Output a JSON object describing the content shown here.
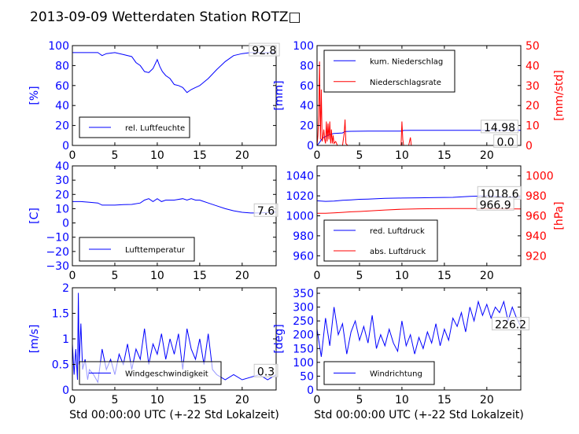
{
  "title": "2013-09-09 Wetterdaten Station ROTZ□",
  "chart_data": [
    {
      "id": "humidity",
      "type": "line",
      "xlim": [
        0,
        24
      ],
      "xticks": [
        0,
        5,
        10,
        15,
        20
      ],
      "left_axis": {
        "label": "[%]",
        "ylim": [
          0,
          100
        ],
        "ticks": [
          0,
          20,
          40,
          60,
          80,
          100
        ],
        "color": "#0000ff"
      },
      "series": [
        {
          "name": "rel. Luftfeuchte",
          "axis": "left",
          "color": "#0000ff",
          "x": [
            0,
            1,
            2,
            3,
            3.5,
            4,
            5,
            6,
            7,
            7.5,
            8,
            8.5,
            9,
            9.5,
            10,
            10.3,
            10.6,
            11,
            11.5,
            12,
            12.5,
            13,
            13.5,
            14,
            14.5,
            15,
            16,
            17,
            18,
            19,
            20,
            21,
            22,
            23,
            24
          ],
          "y": [
            93,
            93,
            93,
            93,
            90,
            92,
            93,
            91,
            89,
            83,
            80,
            74,
            73,
            77,
            86,
            79,
            74,
            70,
            67,
            61,
            60,
            58,
            53,
            56,
            58,
            60,
            67,
            76,
            84,
            90,
            92,
            93,
            93,
            93,
            93
          ]
        }
      ],
      "annotations": [
        {
          "text": "92.8",
          "x": 22.6,
          "y": 96,
          "axis": "left"
        }
      ],
      "legend": {
        "position": "lower-left"
      }
    },
    {
      "id": "rain",
      "type": "line",
      "xlim": [
        0,
        24
      ],
      "xticks": [
        0,
        5,
        10,
        15,
        20
      ],
      "left_axis": {
        "label": "[mm]",
        "ylim": [
          0,
          100
        ],
        "ticks": [
          0,
          20,
          40,
          60,
          80,
          100
        ],
        "color": "#0000ff"
      },
      "right_axis": {
        "label": "[mm/std]",
        "ylim": [
          0,
          50
        ],
        "ticks": [
          0,
          10,
          20,
          30,
          40,
          50
        ],
        "color": "#ff0000"
      },
      "series": [
        {
          "name": "kum. Niederschlag",
          "axis": "left",
          "color": "#0000ff",
          "x": [
            0,
            0.3,
            0.6,
            1,
            1.5,
            2,
            3,
            3.3,
            4,
            6,
            8,
            10,
            10.2,
            11,
            12,
            15,
            18,
            20,
            22,
            24
          ],
          "y": [
            0,
            3,
            7,
            9,
            11,
            12,
            12.5,
            14,
            14.2,
            14.3,
            14.3,
            14.4,
            15,
            15.1,
            15.1,
            15.1,
            15.1,
            15.1,
            15.1,
            15.1
          ]
        },
        {
          "name": "Niederschlagsrate",
          "axis": "right",
          "color": "#ff0000",
          "x": [
            0,
            0.1,
            0.2,
            0.3,
            0.4,
            0.5,
            0.6,
            0.7,
            0.8,
            0.9,
            1.0,
            1.1,
            1.2,
            1.3,
            1.4,
            1.5,
            1.6,
            1.7,
            1.8,
            1.9,
            2.0,
            2.2,
            2.4,
            3.0,
            3.2,
            3.3,
            3.4,
            3.6,
            9.9,
            10.0,
            10.1,
            10.2,
            10.8,
            10.9,
            11.0,
            11.1,
            11.2,
            12,
            24
          ],
          "y": [
            0,
            5,
            15,
            42,
            3,
            28,
            2,
            4,
            8,
            3,
            1,
            12,
            2,
            11,
            3,
            12,
            1,
            8,
            1,
            5,
            1,
            2,
            0,
            0,
            6,
            13,
            1,
            0,
            0,
            12,
            3,
            0,
            0,
            2,
            4,
            0,
            0,
            0,
            0
          ]
        }
      ],
      "annotations": [
        {
          "text": "14.98",
          "x": 21.5,
          "y": 19,
          "axis": "left"
        },
        {
          "text": "0.0",
          "x": 22.2,
          "y": 4.5,
          "axis": "left"
        }
      ],
      "legend": {
        "position": "upper-left"
      }
    },
    {
      "id": "temperature",
      "type": "line",
      "xlim": [
        0,
        24
      ],
      "xticks": [
        0,
        5,
        10,
        15,
        20
      ],
      "left_axis": {
        "label": "[C]",
        "ylim": [
          -30,
          40
        ],
        "ticks": [
          -30,
          -20,
          -10,
          0,
          10,
          20,
          30,
          40
        ],
        "color": "#0000ff"
      },
      "series": [
        {
          "name": "Lufttemperatur",
          "axis": "left",
          "color": "#0000ff",
          "x": [
            0,
            1,
            2,
            3,
            3.5,
            4,
            5,
            6,
            7,
            8,
            8.5,
            9,
            9.5,
            10,
            10.5,
            11,
            12,
            13,
            13.5,
            14,
            14.5,
            15,
            16,
            17,
            18,
            19,
            20,
            21,
            22,
            23,
            24
          ],
          "y": [
            15,
            15,
            14.5,
            14,
            12.5,
            12.5,
            12.5,
            12.8,
            13,
            14,
            16,
            17,
            15,
            17,
            15,
            16,
            16,
            17,
            16,
            17,
            16,
            16,
            14,
            12,
            10,
            8.5,
            7.5,
            7,
            7,
            7.3,
            7.6
          ]
        }
      ],
      "annotations": [
        {
          "text": "7.6",
          "x": 22.8,
          "y": 9,
          "axis": "left"
        }
      ],
      "legend": {
        "position": "lower-left"
      }
    },
    {
      "id": "pressure",
      "type": "line",
      "xlim": [
        0,
        24
      ],
      "xticks": [
        0,
        5,
        10,
        15,
        20
      ],
      "left_axis": {
        "label": "",
        "ylim": [
          950,
          1050
        ],
        "ticks": [
          960,
          980,
          1000,
          1020,
          1040
        ],
        "color": "#0000ff"
      },
      "right_axis": {
        "label": "[hPa]",
        "ylim": [
          910,
          1010
        ],
        "ticks": [
          920,
          940,
          960,
          980,
          1000
        ],
        "color": "#ff0000"
      },
      "series": [
        {
          "name": "red. Luftdruck",
          "axis": "left",
          "color": "#0000ff",
          "x": [
            0,
            1,
            2,
            3,
            4,
            5,
            6,
            8,
            10,
            12,
            14,
            16,
            18,
            20,
            22,
            24
          ],
          "y": [
            1015,
            1014.5,
            1014.8,
            1015.5,
            1016,
            1016.5,
            1016.8,
            1017.5,
            1017.8,
            1018,
            1018.3,
            1018.5,
            1019.5,
            1020,
            1019,
            1018.6
          ]
        },
        {
          "name": "abs. Luftdruck",
          "axis": "right",
          "color": "#ff0000",
          "x": [
            0,
            1,
            2,
            3,
            4,
            5,
            6,
            8,
            10,
            12,
            14,
            16,
            18,
            20,
            22,
            24
          ],
          "y": [
            962.5,
            962.5,
            963,
            963.5,
            964,
            964.3,
            964.8,
            965.8,
            966.6,
            967,
            967.2,
            967.3,
            967.3,
            967.2,
            967,
            966.9
          ]
        }
      ],
      "annotations": [
        {
          "text": "1018.6",
          "x": 21.5,
          "y": 1023,
          "axis": "left"
        },
        {
          "text": "966.9",
          "x": 21.0,
          "y": 1012,
          "axis": "left"
        }
      ],
      "legend": {
        "position": "lower-left"
      }
    },
    {
      "id": "windspeed",
      "type": "line",
      "xlim": [
        0,
        24
      ],
      "xticks": [
        0,
        5,
        10,
        15,
        20
      ],
      "xlabel": "Std 00:00:00 UTC (+-22 Std Lokalzeit)",
      "left_axis": {
        "label": "[m/s]",
        "ylim": [
          0,
          2.0
        ],
        "ticks": [
          0.0,
          0.5,
          1.0,
          1.5,
          2.0
        ],
        "color": "#0000ff"
      },
      "series": [
        {
          "name": "Windgeschwindigkeit",
          "axis": "left",
          "color": "#0000ff",
          "x": [
            0,
            0.2,
            0.4,
            0.6,
            0.7,
            0.8,
            1.0,
            1.2,
            1.5,
            1.8,
            2,
            2.5,
            3,
            3.5,
            4,
            4.5,
            5,
            5.5,
            6,
            6.5,
            7,
            7.5,
            8,
            8.5,
            9,
            9.5,
            10,
            10.5,
            11,
            11.5,
            12,
            12.5,
            13,
            13.5,
            14,
            14.5,
            15,
            15.5,
            16,
            16.5,
            17,
            18,
            19,
            20,
            21,
            22,
            23,
            24
          ],
          "y": [
            0.9,
            0.3,
            0.8,
            0.2,
            1.9,
            0.5,
            1.3,
            0.4,
            0.6,
            0.2,
            0.4,
            0.3,
            0.15,
            0.8,
            0.4,
            0.6,
            0.3,
            0.7,
            0.5,
            0.9,
            0.4,
            0.8,
            0.6,
            1.2,
            0.5,
            0.9,
            0.7,
            1.1,
            0.6,
            1.0,
            0.7,
            1.1,
            0.4,
            1.2,
            0.8,
            0.6,
            1.0,
            0.5,
            1.1,
            0.4,
            0.3,
            0.2,
            0.3,
            0.2,
            0.25,
            0.3,
            0.2,
            0.3
          ]
        }
      ],
      "annotations": [
        {
          "text": "0.3",
          "x": 22.8,
          "y": 0.38,
          "axis": "left"
        }
      ],
      "legend": {
        "position": "lower-left"
      }
    },
    {
      "id": "winddir",
      "type": "line",
      "xlim": [
        0,
        24
      ],
      "xticks": [
        0,
        5,
        10,
        15,
        20
      ],
      "xlabel": "Std 00:00:00 UTC (+-22 Std Lokalzeit)",
      "left_axis": {
        "label": "[deg]",
        "ylim": [
          0,
          370
        ],
        "ticks": [
          0,
          50,
          100,
          150,
          200,
          250,
          300,
          350
        ],
        "color": "#0000ff"
      },
      "series": [
        {
          "name": "Windrichtung",
          "axis": "left",
          "color": "#0000ff",
          "x": [
            0,
            0.5,
            1,
            1.5,
            2,
            2.5,
            3,
            3.5,
            4,
            4.5,
            5,
            5.5,
            6,
            6.5,
            7,
            7.5,
            8,
            8.5,
            9,
            9.5,
            10,
            10.5,
            11,
            11.5,
            12,
            12.5,
            13,
            13.5,
            14,
            14.5,
            15,
            15.5,
            16,
            16.5,
            17,
            17.5,
            18,
            18.5,
            19,
            19.5,
            20,
            20.5,
            21,
            21.5,
            22,
            22.5,
            23,
            23.5,
            24
          ],
          "y": [
            220,
            120,
            260,
            160,
            300,
            200,
            240,
            130,
            210,
            250,
            180,
            230,
            170,
            270,
            150,
            200,
            160,
            220,
            170,
            140,
            250,
            160,
            200,
            130,
            190,
            150,
            210,
            170,
            240,
            160,
            220,
            180,
            260,
            230,
            280,
            210,
            300,
            250,
            320,
            270,
            310,
            260,
            300,
            280,
            320,
            250,
            300,
            260,
            230
          ]
        }
      ],
      "annotations": [
        {
          "text": "226.2",
          "x": 22.8,
          "y": 240,
          "axis": "left"
        }
      ],
      "legend": {
        "position": "lower-left"
      }
    }
  ]
}
